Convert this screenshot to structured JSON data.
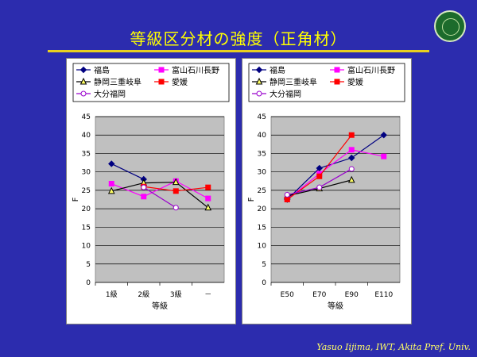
{
  "title": "等級区分材の強度（正角材）",
  "footer": "Yasuo Iijima, IWT, Akita Pref. Univ.",
  "logo_text": "Akita Prefectural University",
  "series_styles": [
    {
      "name": "福島",
      "color": "#000080",
      "marker": "diamond",
      "fill": true
    },
    {
      "name": "富山石川長野",
      "color": "#ff00ff",
      "marker": "square",
      "fill": true
    },
    {
      "name": "静岡三重岐阜",
      "color": "#000000",
      "marker": "triangle",
      "fill": false,
      "markerFill": "#ffff66"
    },
    {
      "name": "愛媛",
      "color": "#ff0000",
      "marker": "square",
      "fill": true
    },
    {
      "name": "大分福岡",
      "color": "#9900cc",
      "marker": "circle",
      "fill": false
    }
  ],
  "chart_data": [
    {
      "type": "line",
      "categories": [
        "1級",
        "2級",
        "3級",
        "－"
      ],
      "xlabel": "等級",
      "ylabel": "F",
      "ylim": [
        0,
        45
      ],
      "yticks": [
        0,
        5,
        10,
        15,
        20,
        25,
        30,
        35,
        40,
        45
      ],
      "grid": true,
      "legend": "top",
      "series": [
        {
          "name": "福島",
          "values": [
            32.2,
            28.0,
            null,
            null
          ]
        },
        {
          "name": "富山石川長野",
          "values": [
            26.8,
            23.3,
            27.5,
            22.8
          ]
        },
        {
          "name": "静岡三重岐阜",
          "values": [
            24.8,
            27.0,
            27.2,
            20.3
          ]
        },
        {
          "name": "愛媛",
          "values": [
            null,
            26.0,
            24.8,
            25.8
          ]
        },
        {
          "name": "大分福岡",
          "values": [
            null,
            25.8,
            20.3,
            null
          ]
        }
      ]
    },
    {
      "type": "line",
      "categories": [
        "E50",
        "E70",
        "E90",
        "E110"
      ],
      "xlabel": "等級",
      "ylabel": "F",
      "ylim": [
        0,
        45
      ],
      "yticks": [
        0,
        5,
        10,
        15,
        20,
        25,
        30,
        35,
        40,
        45
      ],
      "grid": true,
      "legend": "top",
      "series": [
        {
          "name": "福島",
          "values": [
            22.5,
            31.0,
            33.8,
            40.0
          ]
        },
        {
          "name": "富山石川長野",
          "values": [
            22.5,
            29.5,
            36.0,
            34.2
          ]
        },
        {
          "name": "静岡三重岐阜",
          "values": [
            23.5,
            25.5,
            27.8,
            null
          ]
        },
        {
          "name": "愛媛",
          "values": [
            22.5,
            28.8,
            40.0,
            null
          ]
        },
        {
          "name": "大分福岡",
          "values": [
            23.8,
            25.8,
            30.8,
            null
          ]
        }
      ]
    }
  ]
}
